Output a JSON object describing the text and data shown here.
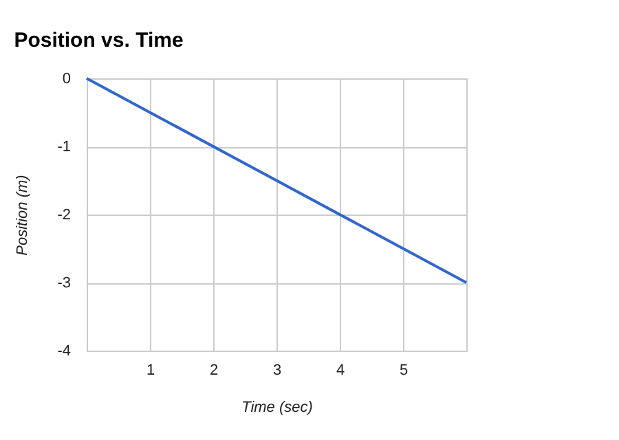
{
  "chart_data": {
    "type": "line",
    "title": "Position vs. Time",
    "xlabel": "Time (sec)",
    "ylabel": "Position (m)",
    "x": [
      0,
      6
    ],
    "series": [
      {
        "color": "#3366cc",
        "values": [
          0,
          -3
        ]
      }
    ],
    "xlim": [
      0,
      6
    ],
    "xticks": [
      1,
      2,
      3,
      4,
      5
    ],
    "ylim": [
      -4,
      0
    ],
    "yticks": [
      0,
      -1,
      -2,
      -3,
      -4
    ],
    "grid": true,
    "line_style": "solid",
    "marker": "none"
  }
}
